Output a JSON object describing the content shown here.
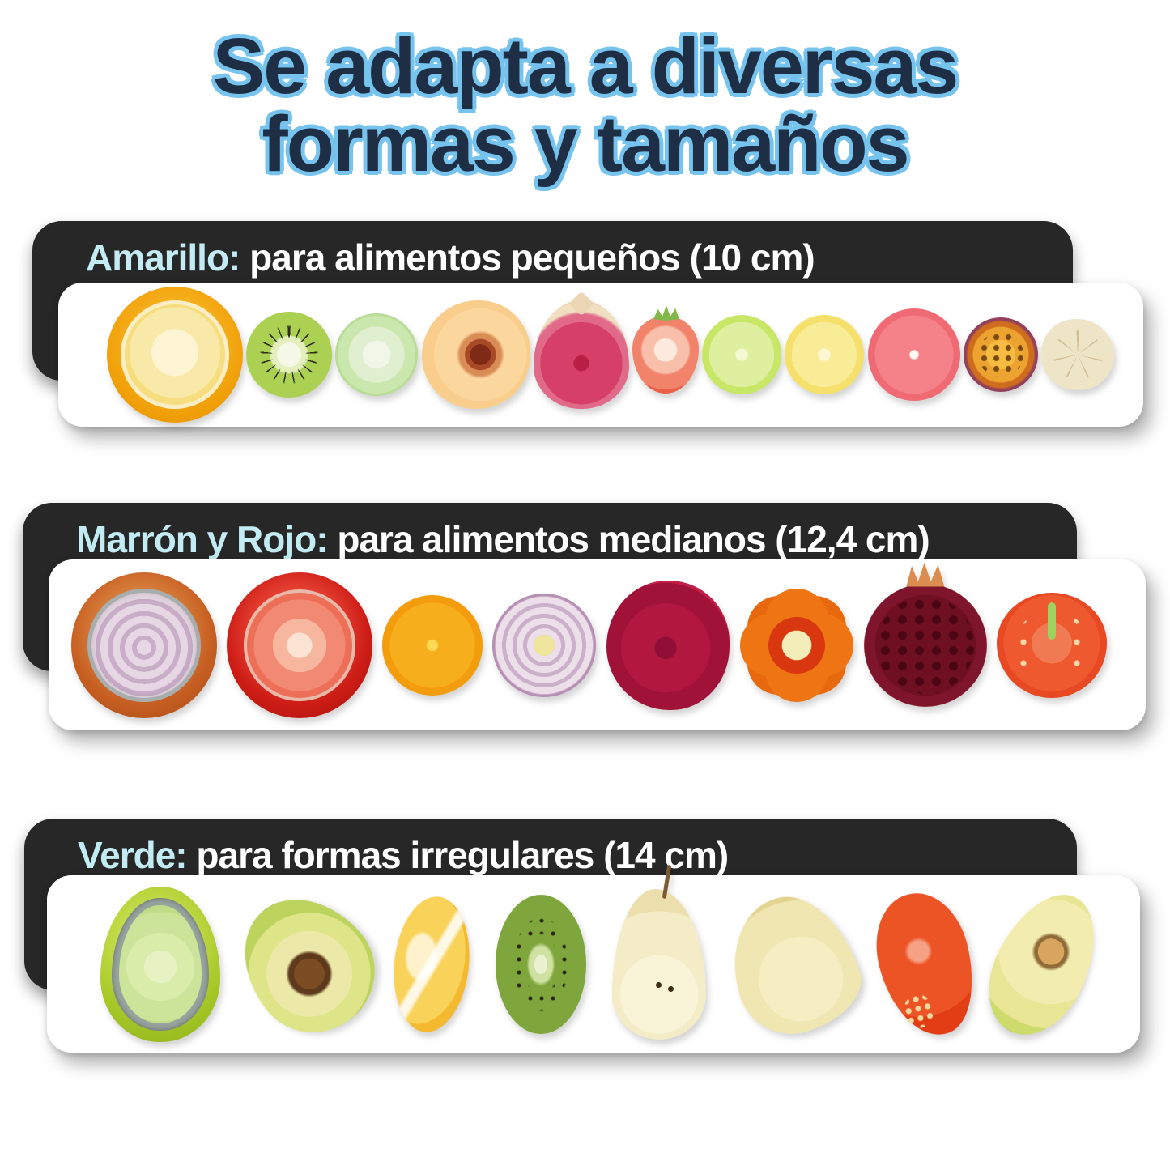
{
  "title": {
    "line1": "Se adapta a diversas",
    "line2": "formas y tamaños",
    "fill_color": "#1d2e45",
    "outline_color": "#76c3ee"
  },
  "sections": [
    {
      "label_accent": "Amarillo:",
      "label_rest": " para alimentos pequeños (10 cm)",
      "accent_color": "#c2ebf3",
      "banner_bg": "#272727",
      "cover_color": "#f2a40a",
      "items": [
        {
          "name": "lemon-in-yellow-cover",
          "type": "f-lemon-cover"
        },
        {
          "name": "kiwi-slice",
          "type": "f-kiwi"
        },
        {
          "name": "cucumber-slice",
          "type": "f-cucumber"
        },
        {
          "name": "peach-half",
          "type": "f-peach"
        },
        {
          "name": "fig-half",
          "type": "f-fig"
        },
        {
          "name": "strawberry-half",
          "type": "f-strawberry"
        },
        {
          "name": "lime-slice",
          "type": "f-lime"
        },
        {
          "name": "lemon-slice",
          "type": "f-lemonslice"
        },
        {
          "name": "grapefruit-slice",
          "type": "f-grapefruit"
        },
        {
          "name": "passion-fruit-half",
          "type": "f-passion"
        },
        {
          "name": "garlic-cross-section",
          "type": "f-garlic"
        }
      ]
    },
    {
      "label_accent": "Marrón y Rojo:",
      "label_rest": " para alimentos medianos (12,4 cm)",
      "accent_color": "#c2ebf3",
      "banner_bg": "#272727",
      "cover_color": "#c75f22",
      "items": [
        {
          "name": "onion-in-brown-cover",
          "type": "f-onion-cover"
        },
        {
          "name": "tomato-in-red-cover",
          "type": "f-tomato-cover"
        },
        {
          "name": "orange-slice",
          "type": "f-orange"
        },
        {
          "name": "red-onion-slice",
          "type": "f-redonion"
        },
        {
          "name": "beet-slice",
          "type": "f-beet"
        },
        {
          "name": "pepper-cross-section",
          "type": "f-pepper"
        },
        {
          "name": "pomegranate-half",
          "type": "f-pomegranate"
        },
        {
          "name": "tomato-half",
          "type": "f-tomatohalf"
        }
      ]
    },
    {
      "label_accent": "Verde:",
      "label_rest": " para formas irregulares (14 cm)",
      "accent_color": "#c2ebf3",
      "banner_bg": "#272727",
      "cover_color": "#a8c929",
      "items": [
        {
          "name": "avocado-in-green-cover",
          "type": "f-avocado-cover"
        },
        {
          "name": "avocado-half-with-pit",
          "type": "f-avocado1"
        },
        {
          "name": "lemon-wedge",
          "type": "f-wedge"
        },
        {
          "name": "kiwi-half",
          "type": "f-kiwihalf"
        },
        {
          "name": "pear-half",
          "type": "f-pearhalf"
        },
        {
          "name": "pear-slice",
          "type": "f-pearslice"
        },
        {
          "name": "red-pepper-half",
          "type": "f-pepperhalf"
        },
        {
          "name": "avocado-half",
          "type": "f-avocado2"
        }
      ]
    }
  ]
}
